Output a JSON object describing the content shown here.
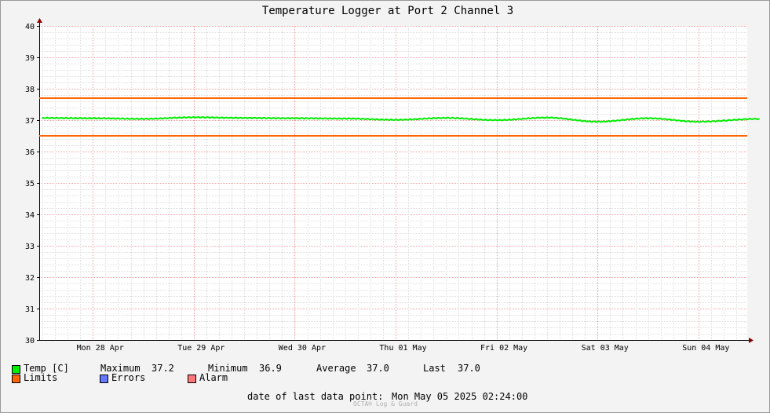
{
  "chart_data": {
    "type": "line",
    "title": "Temperature Logger at Port 2 Channel 3",
    "xlabel": "",
    "ylabel": "",
    "ylim": [
      30,
      40
    ],
    "y_ticks": [
      "30",
      "31",
      "32",
      "33",
      "34",
      "35",
      "36",
      "37",
      "38",
      "39",
      "40"
    ],
    "x_ticks": [
      "Mon 28 Apr",
      "Tue 29 Apr",
      "Wed 30 Apr",
      "Thu 01 May",
      "Fri 02 May",
      "Sat 03 May",
      "Sun 04 May"
    ],
    "x_domain_days": [
      "Mon 28 Apr",
      "Mon 05 May"
    ],
    "grid": true,
    "series": [
      {
        "name": "Temp [C]",
        "color": "#00ee00",
        "x": [
          "Mon 28 Apr 00:00",
          "Mon 28 Apr 12:00",
          "Tue 29 Apr 00:00",
          "Tue 29 Apr 12:00",
          "Wed 30 Apr 00:00",
          "Wed 30 Apr 12:00",
          "Thu 01 May 00:00",
          "Thu 01 May 12:00",
          "Fri 02 May 00:00",
          "Fri 02 May 12:00",
          "Sat 03 May 00:00",
          "Sat 03 May 12:00",
          "Sun 04 May 00:00",
          "Sun 04 May 12:00",
          "Mon 05 May 02:24"
        ],
        "values": [
          37.07,
          37.06,
          37.04,
          37.09,
          37.07,
          37.06,
          37.05,
          37.01,
          37.07,
          37.0,
          37.08,
          36.95,
          37.06,
          36.95,
          37.04
        ]
      }
    ],
    "limits": {
      "name": "Limits",
      "color": "#ff6600",
      "upper": 37.7,
      "lower": 36.5
    }
  },
  "legend": {
    "temp_label": "Temp [C]",
    "temp_color": "#00ee00",
    "maximum_label": "Maximum",
    "maximum_value": "37.2",
    "minimum_label": "Minimum",
    "minimum_value": "36.9",
    "average_label": "Average",
    "average_value": "37.0",
    "last_label": "Last",
    "last_value": "37.0",
    "limits_label": "Limits",
    "limits_color": "#ff6600",
    "errors_label": "Errors",
    "errors_color": "#6677ff",
    "alarm_label": "Alarm",
    "alarm_color": "#ff7777"
  },
  "footer": {
    "last_point_label": "date of last data point:",
    "last_point_value": "Mon May 05 2025 02:24:00",
    "watermark": "OCTA® Log & Guard"
  }
}
